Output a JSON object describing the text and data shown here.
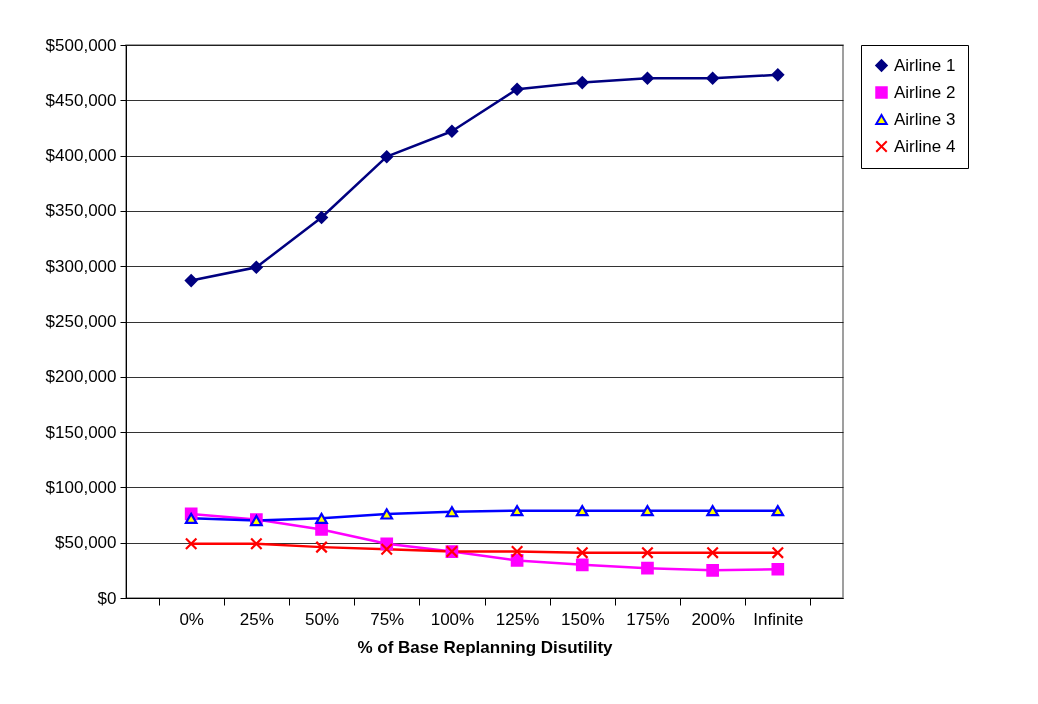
{
  "chart_data": {
    "type": "line",
    "xlabel": "% of Base Replanning Disutility",
    "categories": [
      "0%",
      "25%",
      "50%",
      "75%",
      "100%",
      "125%",
      "150%",
      "175%",
      "200%",
      "Infinite"
    ],
    "series": [
      {
        "name": "Airline 1",
        "color": "#000080",
        "marker": "diamond",
        "values": [
          287000,
          299000,
          344000,
          399000,
          422000,
          460000,
          466000,
          470000,
          470000,
          473000
        ]
      },
      {
        "name": "Airline 2",
        "color": "#ff00ff",
        "marker": "square",
        "values": [
          76000,
          71000,
          62000,
          49000,
          42000,
          34000,
          30000,
          27000,
          25000,
          26000
        ]
      },
      {
        "name": "Airline 3",
        "color": "#0000ff",
        "marker": "triangle",
        "values": [
          72000,
          70000,
          72000,
          76000,
          78000,
          79000,
          79000,
          79000,
          79000,
          79000
        ]
      },
      {
        "name": "Airline 4",
        "color": "#ff0000",
        "marker": "cross",
        "values": [
          49000,
          49000,
          46000,
          44000,
          42000,
          42000,
          41000,
          41000,
          41000,
          41000
        ]
      }
    ],
    "ylim": [
      0,
      500000
    ],
    "yticks": [
      {
        "value": 0,
        "label": "$0"
      },
      {
        "value": 50000,
        "label": "$50,000"
      },
      {
        "value": 100000,
        "label": "$100,000"
      },
      {
        "value": 150000,
        "label": "$150,000"
      },
      {
        "value": 200000,
        "label": "$200,000"
      },
      {
        "value": 250000,
        "label": "$250,000"
      },
      {
        "value": 300000,
        "label": "$300,000"
      },
      {
        "value": 350000,
        "label": "$350,000"
      },
      {
        "value": 400000,
        "label": "$400,000"
      },
      {
        "value": 450000,
        "label": "$450,000"
      },
      {
        "value": 500000,
        "label": "$500,000"
      }
    ],
    "grid": "y",
    "legend": "right",
    "line_style": "solid"
  }
}
